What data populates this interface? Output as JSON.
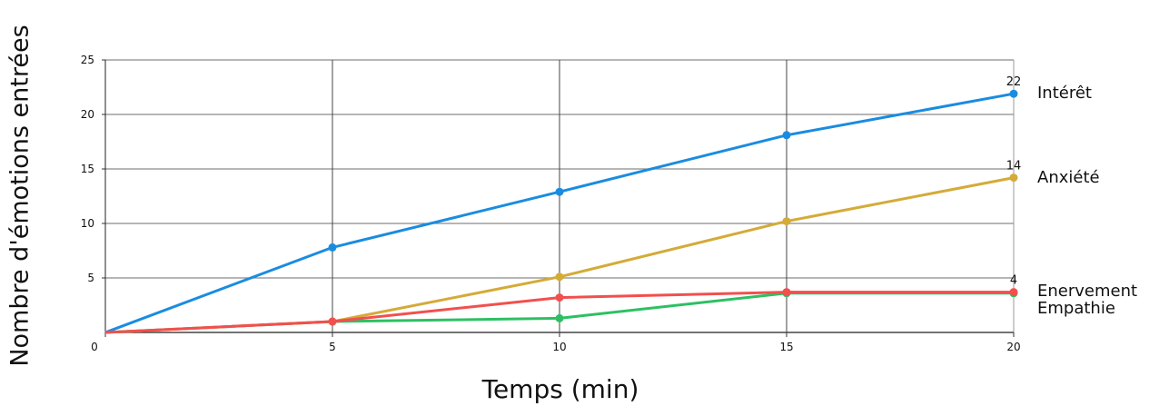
{
  "chart_data": {
    "type": "line",
    "title": "",
    "xlabel": "Temps (min)",
    "ylabel": "Nombre d'émotions entrées",
    "x": [
      0,
      5,
      10,
      15,
      20
    ],
    "xticks": [
      "0",
      "5",
      "10",
      "15",
      "20"
    ],
    "yticks": [
      "5",
      "10",
      "15",
      "20",
      "25"
    ],
    "ylim": [
      0,
      25
    ],
    "xlim": [
      0,
      20
    ],
    "grid": true,
    "legend_position": "right-end-labels",
    "series": [
      {
        "name": "Intérêt",
        "color": "#1a8ce0",
        "values": [
          0,
          7.8,
          12.9,
          18.1,
          21.9
        ],
        "end_label": "22"
      },
      {
        "name": "Anxiété",
        "color": "#d4ab38",
        "values": [
          0,
          1,
          5.1,
          10.2,
          14.2
        ],
        "end_label": "14"
      },
      {
        "name": "Enervement",
        "color": "#f24f4f",
        "values": [
          0,
          1,
          3.2,
          3.7,
          3.7
        ],
        "end_label": "4"
      },
      {
        "name": "Empathie",
        "color": "#2dc063",
        "values": [
          0,
          1,
          1.3,
          3.6,
          3.6
        ],
        "end_label": ""
      }
    ]
  },
  "labels": {
    "xlabel": "Temps (min)",
    "ylabel": "Nombre d'émotions entrées"
  }
}
